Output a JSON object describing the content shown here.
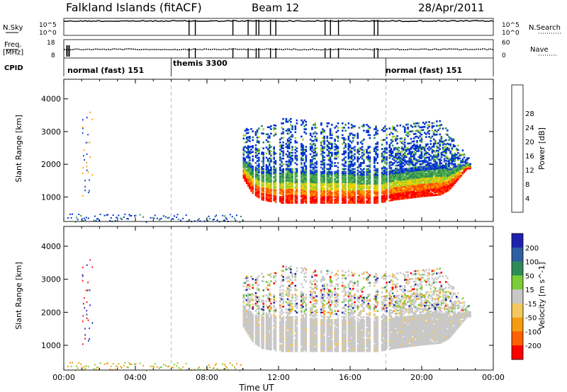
{
  "header": {
    "station": "Falkland Islands (fitACF)",
    "beam": "Beam 12",
    "date": "28/Apr/2011"
  },
  "params": {
    "left_labels": [
      "N.Sky",
      "Freq.",
      "[MHz]",
      "CPID"
    ],
    "right_labels": [
      "N.Search",
      "Nave"
    ],
    "nsky_ticks": [
      "10^5",
      "10^0"
    ],
    "freq_ticks": [
      "18",
      "8"
    ],
    "nsearch_ticks": [
      "10^5",
      "10^0"
    ],
    "nave_ticks": [
      "60",
      "0"
    ]
  },
  "cpid_segments": [
    {
      "label": "normal (fast) 151",
      "start_hour": 0
    },
    {
      "label": "themis 3300",
      "start_hour": 6
    },
    {
      "label": "normal (fast) 151",
      "start_hour": 18
    }
  ],
  "axes": {
    "ylabel": "Slant Range [km]",
    "yticks": [
      1000,
      2000,
      3000,
      4000
    ],
    "ylim": [
      250,
      4600
    ],
    "xlabel": "Time UT",
    "xticks": [
      "00:00",
      "04:00",
      "08:00",
      "12:00",
      "16:00",
      "20:00",
      "00:00"
    ],
    "xlim": [
      0,
      24
    ]
  },
  "colors": {
    "power": [
      "#0033cc",
      "#2b55c8",
      "#2e8b57",
      "#5bb34a",
      "#9acd32",
      "#f0d000",
      "#ff9900",
      "#ff5000",
      "#ff0000"
    ],
    "velocity": [
      "#2020b0",
      "#2e5fa0",
      "#2e8b57",
      "#7ccc3a",
      "#c8c8c8",
      "#f4c860",
      "#f39c12",
      "#ff6000",
      "#ff0000"
    ]
  },
  "chart_data": [
    {
      "type": "heatmap",
      "title": "Power",
      "colorbar_label": "Power [dB]",
      "colorbar_ticks": [
        "4",
        "8",
        "12",
        "16",
        "20",
        "24",
        "28"
      ],
      "x_range_hours": [
        0,
        24
      ],
      "y_range_km": [
        250,
        4600
      ],
      "echo_region": {
        "start_hour": 10.0,
        "end_hour": 22.7,
        "lower_edge_km": [
          [
            10.0,
            1600
          ],
          [
            10.5,
            1150
          ],
          [
            11.0,
            950
          ],
          [
            12.0,
            850
          ],
          [
            14.0,
            850
          ],
          [
            16.0,
            850
          ],
          [
            17.5,
            850
          ],
          [
            18.5,
            950
          ],
          [
            20.0,
            1050
          ],
          [
            21.0,
            1100
          ],
          [
            21.5,
            1250
          ],
          [
            22.5,
            1900
          ]
        ],
        "upper_edge_km": [
          [
            10.0,
            3100
          ],
          [
            11.0,
            3200
          ],
          [
            12.5,
            3500
          ],
          [
            14.0,
            3300
          ],
          [
            16.0,
            3300
          ],
          [
            18.0,
            3200
          ],
          [
            20.0,
            3300
          ],
          [
            21.0,
            3400
          ],
          [
            22.0,
            2600
          ],
          [
            22.7,
            2200
          ]
        ],
        "peak_power_db": 28
      },
      "ground_scatter_band_km": [
        250,
        500
      ]
    },
    {
      "type": "heatmap",
      "title": "Velocity",
      "colorbar_label": "Velocity [m s^-1]",
      "colorbar_ticks": [
        "200",
        "100",
        "50",
        "15",
        "-15",
        "-50",
        "-100",
        "-200"
      ],
      "x_range_hours": [
        0,
        24
      ],
      "y_range_km": [
        250,
        4600
      ],
      "dominant_velocity_range": [
        -15,
        15
      ]
    }
  ]
}
